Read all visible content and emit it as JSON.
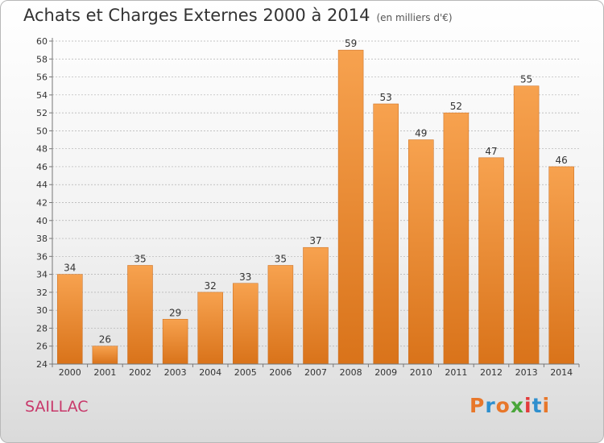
{
  "header": {
    "title": "Achats et Charges Externes 2000 à 2014",
    "subtitle": "(en milliers d'€)"
  },
  "footer": {
    "commune": "SAILLAC",
    "logo_text": "Proxiti"
  },
  "colors": {
    "bar_top": "#f7a24f",
    "bar_bottom": "#d9731a",
    "bar_edge": "#c8691a",
    "grid": "#b0b0b0",
    "commune": "#c8386a",
    "logo": [
      "#e8772a",
      "#2e8fce",
      "#e8772a",
      "#4aa63a",
      "#e33b3b",
      "#2e8fce",
      "#e8772a"
    ]
  },
  "chart_data": {
    "type": "bar",
    "title": "Achats et Charges Externes 2000 à 2014",
    "subtitle": "(en milliers d'€)",
    "categories": [
      "2000",
      "2001",
      "2002",
      "2003",
      "2004",
      "2005",
      "2006",
      "2007",
      "2008",
      "2009",
      "2010",
      "2011",
      "2012",
      "2013",
      "2014"
    ],
    "values": [
      34,
      26,
      35,
      29,
      32,
      33,
      35,
      37,
      59,
      53,
      49,
      52,
      47,
      55,
      46
    ],
    "xlabel": "",
    "ylabel": "",
    "ylim": [
      24,
      60
    ],
    "yticks": [
      24,
      26,
      28,
      30,
      32,
      34,
      36,
      38,
      40,
      42,
      44,
      46,
      48,
      50,
      52,
      54,
      56,
      58,
      60
    ],
    "grid": "horizontal dashed",
    "data_labels": true
  }
}
